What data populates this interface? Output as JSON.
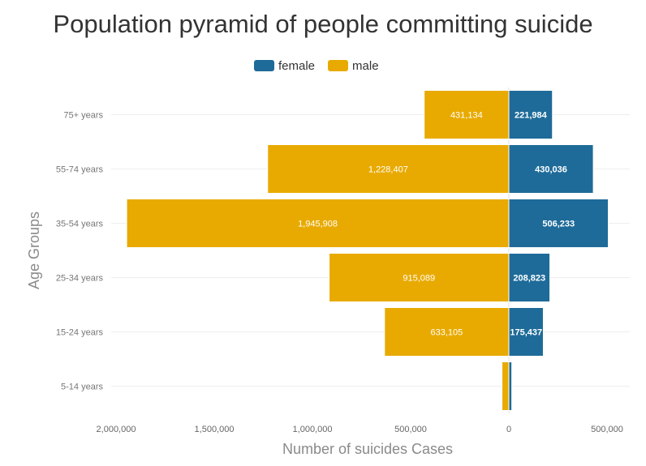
{
  "chart_data": {
    "type": "bar",
    "orientation": "horizontal-pyramid",
    "title": "Population pyramid of people committing suicide",
    "xlabel": "Number of suicides Cases",
    "ylabel": "Age Groups",
    "categories": [
      "75+ years",
      "55-74 years",
      "35-54 years",
      "25-34 years",
      "15-24 years",
      "5-14 years"
    ],
    "series": [
      {
        "name": "male",
        "color": "#e8aa00",
        "side": "left",
        "values": [
          431134,
          1228407,
          1945908,
          915089,
          633105,
          35000
        ],
        "labels": [
          "431,134",
          "1,228,407",
          "1,945,908",
          "915,089",
          "633,105",
          ""
        ]
      },
      {
        "name": "female",
        "color": "#1e6b99",
        "side": "right",
        "values": [
          221984,
          430036,
          506233,
          208823,
          175437,
          15000
        ],
        "labels": [
          "221,984",
          "430,036",
          "506,233",
          "208,823",
          "175,437",
          ""
        ]
      }
    ],
    "legend": [
      {
        "name": "female",
        "color": "#1e6b99"
      },
      {
        "name": "male",
        "color": "#e8aa00"
      }
    ],
    "xlim": [
      -2000000,
      600000
    ],
    "xticks": [
      {
        "value": -2000000,
        "label": "2,000,000"
      },
      {
        "value": -1500000,
        "label": "1,500,000"
      },
      {
        "value": -1000000,
        "label": "1,000,000"
      },
      {
        "value": -500000,
        "label": "500,000"
      },
      {
        "value": 0,
        "label": "0"
      },
      {
        "value": 500000,
        "label": "500,000"
      }
    ],
    "grid": true,
    "legend_position": "top-center"
  }
}
